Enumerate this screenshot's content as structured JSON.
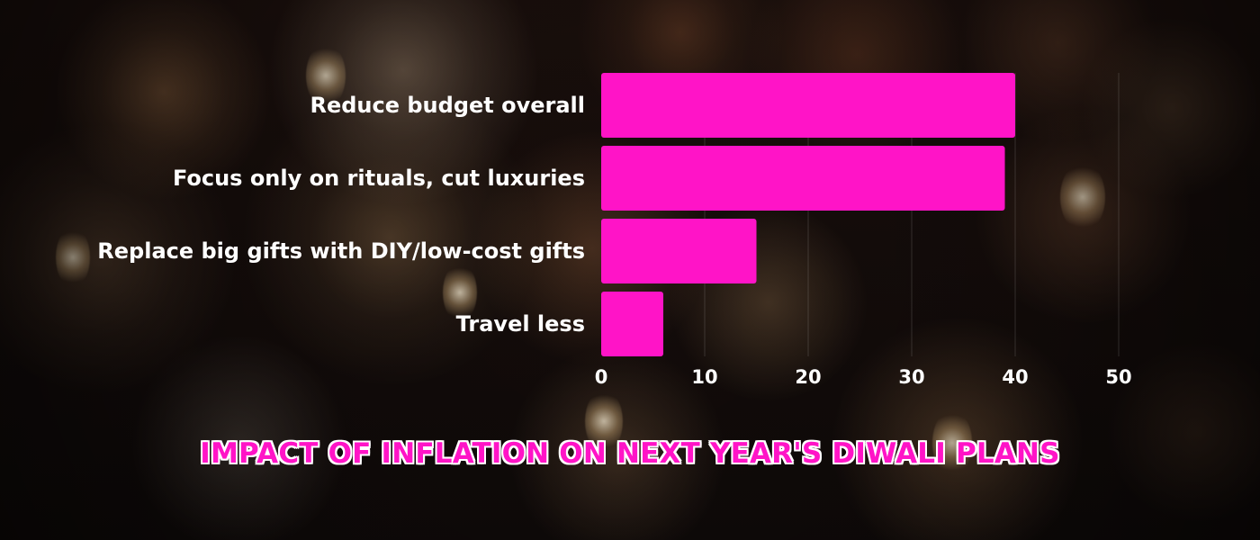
{
  "chart_data": {
    "type": "bar",
    "orientation": "horizontal",
    "title": "IMPACT OF INFLATION ON NEXT YEAR'S DIWALI PLANS",
    "categories": [
      "Reduce budget overall",
      "Focus only on rituals, cut luxuries",
      "Replace big gifts with DIY/low-cost gifts",
      "Travel less"
    ],
    "values": [
      40,
      39,
      15,
      6
    ],
    "xlim": [
      0,
      50
    ],
    "x_ticks": [
      "0",
      "10",
      "20",
      "30",
      "40",
      "50"
    ],
    "grid": "vertical",
    "bar_color": "#ff14c7"
  }
}
